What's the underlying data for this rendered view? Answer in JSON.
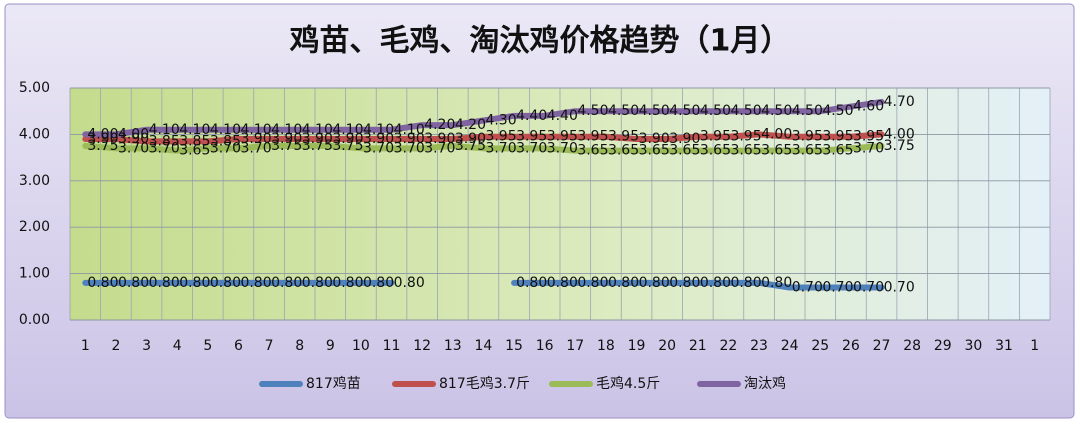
{
  "chart_data": {
    "type": "line",
    "title": "鸡苗、毛鸡、淘汰鸡价格趋势（1月）",
    "categories": [
      "1",
      "2",
      "3",
      "4",
      "5",
      "6",
      "7",
      "8",
      "9",
      "10",
      "11",
      "12",
      "13",
      "14",
      "15",
      "16",
      "17",
      "18",
      "19",
      "20",
      "21",
      "22",
      "23",
      "24",
      "25",
      "26",
      "27",
      "28",
      "29",
      "30",
      "31",
      "1"
    ],
    "ylim": [
      0,
      5
    ],
    "yticks": [
      {
        "value": 0,
        "label": "0.00"
      },
      {
        "value": 1,
        "label": "1.00"
      },
      {
        "value": 2,
        "label": "2.00"
      },
      {
        "value": 3,
        "label": "3.00"
      },
      {
        "value": 4,
        "label": "4.00"
      },
      {
        "value": 5,
        "label": "5.00"
      }
    ],
    "grid": true,
    "legend": "bottom",
    "series": [
      {
        "name": "817鸡苗",
        "color": "#4f81bd",
        "values": [
          0.8,
          0.8,
          0.8,
          0.8,
          0.8,
          0.8,
          0.8,
          0.8,
          0.8,
          0.8,
          0.8,
          null,
          null,
          null,
          0.8,
          0.8,
          0.8,
          0.8,
          0.8,
          0.8,
          0.8,
          0.8,
          0.8,
          0.7,
          0.7,
          0.7,
          0.7,
          null,
          null,
          null,
          null,
          null
        ],
        "value_labels": [
          "0.80",
          "0.80",
          "0.80",
          "0.80",
          "0.80",
          "0.80",
          "0.80",
          "0.80",
          "0.80",
          "0.80",
          "0.80",
          null,
          null,
          null,
          "0.80",
          "0.80",
          "0.80",
          "0.80",
          "0.80",
          "0.80",
          "0.80",
          "0.80",
          "0.80",
          "0.70",
          "0.70",
          "0.70",
          "0.70",
          null,
          null,
          null,
          null,
          null
        ]
      },
      {
        "name": "817毛鸡3.7斤",
        "color": "#c0504d",
        "values": [
          3.9,
          3.9,
          3.85,
          3.85,
          3.85,
          3.9,
          3.9,
          3.9,
          3.9,
          3.9,
          3.9,
          3.9,
          3.9,
          3.95,
          3.95,
          3.95,
          3.95,
          3.95,
          3.9,
          3.9,
          3.95,
          3.95,
          4.0,
          3.95,
          3.95,
          3.95,
          4.0,
          null,
          null,
          null,
          null,
          null
        ],
        "value_labels": [
          "3.90",
          "3.90",
          "3.85",
          "3.85",
          "3.85",
          "3.90",
          "3.90",
          "3.90",
          "3.90",
          "3.90",
          "3.90",
          "3.90",
          "3.90",
          "3.95",
          "3.95",
          "3.95",
          "3.95",
          "3.95",
          "3.90",
          "3.90",
          "3.95",
          "3.95",
          "4.00",
          "3.95",
          "3.95",
          "3.95",
          "4.00",
          null,
          null,
          null,
          null,
          null
        ]
      },
      {
        "name": "毛鸡4.5斤",
        "color": "#9bbb59",
        "values": [
          3.75,
          3.7,
          3.7,
          3.65,
          3.7,
          3.7,
          3.75,
          3.75,
          3.75,
          3.7,
          3.7,
          3.7,
          3.75,
          3.7,
          3.7,
          3.7,
          3.65,
          3.65,
          3.65,
          3.65,
          3.65,
          3.65,
          3.65,
          3.65,
          3.65,
          3.7,
          3.75,
          null,
          null,
          null,
          null,
          null
        ],
        "value_labels": [
          "3.75",
          "3.70",
          "3.70",
          "3.65",
          "3.70",
          "3.70",
          "3.75",
          "3.75",
          "3.75",
          "3.70",
          "3.70",
          "3.70",
          "3.75",
          "3.70",
          "3.70",
          "3.70",
          "3.65",
          "3.65",
          "3.65",
          "3.65",
          "3.65",
          "3.65",
          "3.65",
          "3.65",
          "3.65",
          "3.70",
          "3.75",
          null,
          null,
          null,
          null,
          null
        ]
      },
      {
        "name": "淘汰鸡",
        "color": "#8064a2",
        "values": [
          4.0,
          4.0,
          4.1,
          4.1,
          4.1,
          4.1,
          4.1,
          4.1,
          4.1,
          4.1,
          4.1,
          4.2,
          4.2,
          4.3,
          4.4,
          4.4,
          4.5,
          4.5,
          4.5,
          4.5,
          4.5,
          4.5,
          4.5,
          4.5,
          4.5,
          4.6,
          4.7,
          null,
          null,
          null,
          null,
          null
        ],
        "value_labels": [
          "4.00",
          "4.00",
          "4.10",
          "4.10",
          "4.10",
          "4.10",
          "4.10",
          "4.10",
          "4.10",
          "4.10",
          "4.10",
          "4.20",
          "4.20",
          "4.30",
          "4.40",
          "4.40",
          "4.50",
          "4.50",
          "4.50",
          "4.50",
          "4.50",
          "4.50",
          "4.50",
          "4.50",
          "4.50",
          "4.60",
          "4.70",
          null,
          null,
          null,
          null,
          null
        ]
      }
    ]
  }
}
